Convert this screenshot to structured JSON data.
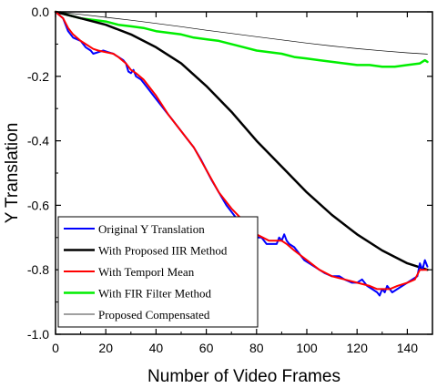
{
  "chart_data": {
    "type": "line",
    "title": "",
    "xlabel": "Number of Video Frames",
    "ylabel": "Y Translation",
    "xlim": [
      0,
      150
    ],
    "ylim": [
      -1.0,
      0.0
    ],
    "xticks": [
      0,
      20,
      40,
      60,
      80,
      100,
      120,
      140
    ],
    "yticks": [
      0.0,
      -0.2,
      -0.4,
      -0.6,
      -0.8,
      -1.0
    ],
    "ytick_labels": [
      "0.0",
      "-0.2",
      "-0.4",
      "-0.6",
      "-0.8",
      "-1.0"
    ],
    "grid": false,
    "legend_position": "bottom-left",
    "series": [
      {
        "name": "Original Y Translation",
        "color": "#0000ff",
        "line_width": 2,
        "x": [
          0,
          3,
          5,
          7,
          10,
          12,
          14,
          15,
          17,
          19,
          21,
          23,
          25,
          27,
          28,
          29,
          30,
          31,
          32,
          34,
          36,
          38,
          40,
          42,
          44,
          46,
          48,
          50,
          52,
          55,
          58,
          60,
          62,
          65,
          68,
          70,
          72,
          75,
          78,
          80,
          82,
          84,
          86,
          88,
          89,
          90,
          91,
          92,
          93,
          95,
          97,
          99,
          101,
          103,
          105,
          107,
          110,
          113,
          115,
          118,
          120,
          122,
          124,
          126,
          128,
          129,
          130,
          131,
          132,
          134,
          136,
          138,
          140,
          142,
          144,
          145,
          146,
          147,
          148
        ],
        "y": [
          0,
          -0.02,
          -0.06,
          -0.08,
          -0.09,
          -0.11,
          -0.12,
          -0.13,
          -0.125,
          -0.12,
          -0.125,
          -0.13,
          -0.14,
          -0.15,
          -0.16,
          -0.185,
          -0.19,
          -0.18,
          -0.2,
          -0.21,
          -0.23,
          -0.25,
          -0.27,
          -0.29,
          -0.31,
          -0.33,
          -0.35,
          -0.37,
          -0.39,
          -0.42,
          -0.46,
          -0.49,
          -0.52,
          -0.56,
          -0.6,
          -0.62,
          -0.64,
          -0.66,
          -0.68,
          -0.7,
          -0.7,
          -0.72,
          -0.72,
          -0.72,
          -0.7,
          -0.71,
          -0.69,
          -0.71,
          -0.72,
          -0.73,
          -0.75,
          -0.77,
          -0.78,
          -0.79,
          -0.8,
          -0.81,
          -0.82,
          -0.82,
          -0.83,
          -0.84,
          -0.84,
          -0.83,
          -0.85,
          -0.86,
          -0.87,
          -0.88,
          -0.86,
          -0.87,
          -0.85,
          -0.87,
          -0.86,
          -0.85,
          -0.84,
          -0.83,
          -0.82,
          -0.78,
          -0.8,
          -0.77,
          -0.79
        ]
      },
      {
        "name": "With Proposed IIR Method",
        "color": "#000000",
        "line_width": 2.5,
        "x": [
          0,
          10,
          20,
          30,
          40,
          50,
          60,
          70,
          80,
          90,
          100,
          110,
          120,
          130,
          140,
          148
        ],
        "y": [
          0,
          -0.02,
          -0.04,
          -0.07,
          -0.11,
          -0.16,
          -0.23,
          -0.31,
          -0.4,
          -0.48,
          -0.56,
          -0.63,
          -0.69,
          -0.74,
          -0.78,
          -0.8
        ]
      },
      {
        "name": "With Temporl Mean",
        "color": "#ff0000",
        "line_width": 2,
        "x": [
          0,
          3,
          5,
          7,
          10,
          12,
          15,
          17,
          20,
          23,
          25,
          28,
          30,
          32,
          35,
          40,
          45,
          50,
          55,
          60,
          65,
          70,
          75,
          80,
          85,
          88,
          90,
          92,
          95,
          100,
          105,
          110,
          115,
          120,
          125,
          128,
          130,
          133,
          136,
          140,
          143,
          145,
          148
        ],
        "y": [
          0,
          -0.02,
          -0.05,
          -0.07,
          -0.09,
          -0.1,
          -0.115,
          -0.12,
          -0.125,
          -0.13,
          -0.14,
          -0.16,
          -0.18,
          -0.19,
          -0.21,
          -0.26,
          -0.32,
          -0.37,
          -0.42,
          -0.49,
          -0.56,
          -0.61,
          -0.65,
          -0.69,
          -0.71,
          -0.71,
          -0.71,
          -0.72,
          -0.74,
          -0.77,
          -0.8,
          -0.82,
          -0.83,
          -0.84,
          -0.85,
          -0.86,
          -0.86,
          -0.86,
          -0.85,
          -0.84,
          -0.83,
          -0.8,
          -0.8
        ]
      },
      {
        "name": "With FIR Filter Method",
        "color": "#00ee00",
        "line_width": 2.5,
        "x": [
          0,
          5,
          10,
          15,
          20,
          25,
          30,
          35,
          40,
          45,
          50,
          55,
          60,
          65,
          70,
          75,
          80,
          85,
          90,
          95,
          100,
          105,
          110,
          115,
          120,
          125,
          130,
          135,
          140,
          145,
          147,
          148
        ],
        "y": [
          0,
          -0.01,
          -0.02,
          -0.025,
          -0.03,
          -0.04,
          -0.045,
          -0.05,
          -0.06,
          -0.065,
          -0.07,
          -0.08,
          -0.085,
          -0.09,
          -0.1,
          -0.11,
          -0.12,
          -0.125,
          -0.13,
          -0.14,
          -0.145,
          -0.15,
          -0.155,
          -0.16,
          -0.165,
          -0.165,
          -0.17,
          -0.17,
          -0.165,
          -0.16,
          -0.15,
          -0.155
        ]
      },
      {
        "name": "Proposed Compensated",
        "color": "#000000",
        "line_width": 0.7,
        "x": [
          0,
          10,
          20,
          30,
          40,
          50,
          60,
          70,
          80,
          90,
          100,
          110,
          120,
          130,
          140,
          148
        ],
        "y": [
          0,
          -0.008,
          -0.017,
          -0.026,
          -0.036,
          -0.046,
          -0.057,
          -0.067,
          -0.077,
          -0.087,
          -0.097,
          -0.106,
          -0.114,
          -0.121,
          -0.127,
          -0.131
        ]
      }
    ]
  }
}
